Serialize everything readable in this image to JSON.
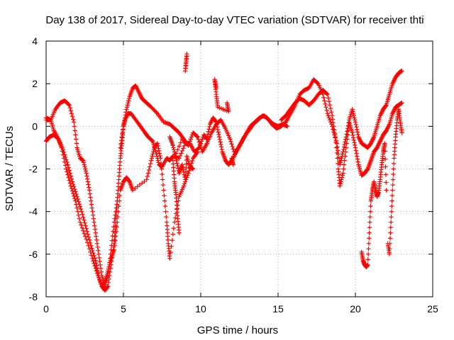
{
  "chart_data": {
    "type": "scatter",
    "title": "Day 138 of 2017, Sidereal Day-to-day VTEC variation (SDTVAR) for receiver thti",
    "xlabel": "GPS time / hours",
    "ylabel": "SDTVAR / TECUs",
    "xlim": [
      0,
      25
    ],
    "ylim": [
      -8,
      4
    ],
    "x_ticks": [
      0,
      5,
      10,
      15,
      20,
      25
    ],
    "y_ticks": [
      -8,
      -6,
      -4,
      -2,
      0,
      2,
      4
    ],
    "grid": true,
    "marker": "+",
    "color": "#ff0000",
    "series": [
      {
        "points": [
          [
            0.0,
            0.3
          ],
          [
            0.3,
            0.3
          ],
          [
            0.5,
            -0.2
          ],
          [
            0.8,
            -0.6
          ],
          [
            1.0,
            -1.0
          ],
          [
            1.3,
            -2.0
          ],
          [
            1.6,
            -2.8
          ],
          [
            1.9,
            -3.5
          ],
          [
            2.2,
            -4.5
          ],
          [
            2.6,
            -5.3
          ],
          [
            3.0,
            -6.2
          ],
          [
            3.3,
            -6.9
          ],
          [
            3.6,
            -7.5
          ],
          [
            3.8,
            -7.7
          ],
          [
            4.0,
            -7.5
          ],
          [
            4.2,
            -6.5
          ],
          [
            4.4,
            -5.5
          ],
          [
            4.5,
            -4.5
          ],
          [
            4.6,
            -3.5
          ],
          [
            4.7,
            -2.5
          ],
          [
            4.8,
            -1.5
          ],
          [
            4.9,
            -0.8
          ],
          [
            5.0,
            0.0
          ],
          [
            5.1,
            0.3
          ],
          [
            5.3,
            0.6
          ],
          [
            5.5,
            0.6
          ],
          [
            5.8,
            0.3
          ],
          [
            6.1,
            0.0
          ],
          [
            6.4,
            -0.3
          ],
          [
            6.6,
            -0.5
          ],
          [
            6.9,
            -0.7
          ],
          [
            7.1,
            -1.2
          ],
          [
            7.3,
            -1.8
          ],
          [
            7.5,
            -1.9
          ],
          [
            7.8,
            -1.5
          ],
          [
            8.0,
            -1.6
          ],
          [
            8.2,
            -1.4
          ],
          [
            8.6,
            -1.5
          ],
          [
            9.0,
            -0.8
          ],
          [
            9.3,
            -0.8
          ],
          [
            9.6,
            -1.2
          ],
          [
            9.9,
            -1.0
          ],
          [
            10.2,
            -0.4
          ],
          [
            10.4,
            -0.6
          ],
          [
            10.6,
            0.1
          ],
          [
            10.8,
            0.4
          ],
          [
            11.0,
            0.2
          ],
          [
            11.2,
            -0.5
          ],
          [
            11.4,
            -1.2
          ],
          [
            11.6,
            -1.6
          ],
          [
            11.8,
            -1.8
          ],
          [
            12.0,
            -1.6
          ],
          [
            12.3,
            -1.2
          ],
          [
            12.6,
            -0.8
          ],
          [
            12.9,
            -0.4
          ],
          [
            13.2,
            0.0
          ],
          [
            13.5,
            0.2
          ],
          [
            13.8,
            0.4
          ],
          [
            14.1,
            0.5
          ],
          [
            14.4,
            0.3
          ],
          [
            14.7,
            0.1
          ],
          [
            15.0,
            0.0
          ],
          [
            15.3,
            0.1
          ],
          [
            15.6,
            0.0
          ]
        ]
      },
      {
        "points": [
          [
            0.0,
            -0.7
          ],
          [
            0.2,
            -0.5
          ],
          [
            0.5,
            -0.4
          ],
          [
            0.8,
            -0.6
          ],
          [
            1.1,
            -1.1
          ],
          [
            1.4,
            -1.8
          ],
          [
            1.7,
            -2.6
          ],
          [
            2.0,
            -3.3
          ],
          [
            2.3,
            -4.0
          ],
          [
            2.6,
            -4.8
          ],
          [
            2.9,
            -5.6
          ],
          [
            3.2,
            -6.3
          ],
          [
            3.4,
            -7.0
          ],
          [
            3.6,
            -7.5
          ],
          [
            3.8,
            -7.3
          ],
          [
            4.0,
            -6.8
          ],
          [
            4.2,
            -6.2
          ],
          [
            4.4,
            -5.8
          ],
          [
            4.6,
            -4.5
          ],
          [
            4.8,
            -3.0
          ],
          [
            5.0,
            -2.6
          ],
          [
            5.2,
            -2.4
          ],
          [
            5.4,
            -2.6
          ],
          [
            5.6,
            -3.0
          ],
          [
            6.5,
            -2.5
          ],
          [
            6.8,
            -1.6
          ],
          [
            7.0,
            -1.0
          ],
          [
            7.2,
            -0.8
          ],
          [
            7.4,
            -1.5
          ],
          [
            7.6,
            -3.0
          ],
          [
            7.8,
            -4.5
          ],
          [
            7.9,
            -5.5
          ],
          [
            8.0,
            -6.2
          ],
          [
            8.3,
            -4.5
          ],
          [
            8.6,
            -3.3
          ],
          [
            8.9,
            -2.8
          ],
          [
            9.2,
            -2.2
          ],
          [
            9.5,
            -1.5
          ],
          [
            9.8,
            -1.2
          ]
        ]
      },
      {
        "points": [
          [
            0.0,
            0.4
          ],
          [
            0.3,
            0.3
          ],
          [
            0.6,
            0.8
          ],
          [
            0.9,
            1.1
          ],
          [
            1.2,
            1.2
          ],
          [
            1.5,
            1.0
          ],
          [
            1.8,
            0.2
          ],
          [
            2.0,
            -1.0
          ],
          [
            2.2,
            -1.5
          ],
          [
            2.4,
            -1.6
          ],
          [
            2.6,
            -2.2
          ],
          [
            2.8,
            -3.0
          ],
          [
            3.0,
            -4.0
          ],
          [
            3.2,
            -5.0
          ],
          [
            3.4,
            -6.0
          ],
          [
            3.6,
            -7.0
          ],
          [
            3.8,
            -7.5
          ],
          [
            4.0,
            -7.0
          ],
          [
            4.2,
            -5.8
          ],
          [
            4.4,
            -4.5
          ],
          [
            4.6,
            -3.5
          ],
          [
            4.8,
            -1.0
          ],
          [
            5.0,
            0.0
          ],
          [
            5.2,
            0.8
          ],
          [
            5.4,
            1.4
          ],
          [
            5.6,
            1.8
          ],
          [
            5.8,
            1.9
          ],
          [
            6.0,
            1.6
          ],
          [
            6.2,
            1.3
          ],
          [
            6.5,
            1.1
          ],
          [
            6.8,
            0.9
          ],
          [
            7.2,
            0.6
          ],
          [
            7.6,
            0.2
          ],
          [
            8.0,
            0.1
          ],
          [
            8.3,
            -0.1
          ],
          [
            8.6,
            -0.3
          ],
          [
            8.9,
            -0.6
          ],
          [
            9.2,
            -0.9
          ],
          [
            9.5,
            -0.3
          ],
          [
            9.8,
            -0.5
          ],
          [
            10.1,
            -1.2
          ],
          [
            10.4,
            -0.8
          ],
          [
            10.7,
            -0.3
          ],
          [
            11.0,
            0.1
          ],
          [
            11.3,
            0.3
          ],
          [
            11.6,
            -0.1
          ],
          [
            11.9,
            -0.6
          ],
          [
            12.2,
            -1.3
          ],
          [
            12.5,
            -0.9
          ],
          [
            12.8,
            -0.5
          ],
          [
            13.1,
            -0.2
          ],
          [
            13.4,
            0.1
          ],
          [
            13.7,
            0.3
          ],
          [
            14.0,
            0.5
          ],
          [
            14.3,
            0.4
          ],
          [
            14.6,
            0.1
          ],
          [
            14.9,
            -0.1
          ],
          [
            15.2,
            0.0
          ],
          [
            15.5,
            0.2
          ],
          [
            15.8,
            0.6
          ],
          [
            16.1,
            1.0
          ],
          [
            16.4,
            1.5
          ],
          [
            16.7,
            1.7
          ],
          [
            17.0,
            1.8
          ],
          [
            17.3,
            2.2
          ],
          [
            17.6,
            2.0
          ],
          [
            17.9,
            1.5
          ],
          [
            18.2,
            0.6
          ],
          [
            18.5,
            0.0
          ],
          [
            18.8,
            -0.8
          ],
          [
            19.0,
            -1.8
          ],
          [
            19.2,
            -1.2
          ],
          [
            19.4,
            -0.5
          ],
          [
            19.6,
            0.3
          ],
          [
            19.8,
            0.8
          ],
          [
            20.0,
            0.2
          ],
          [
            20.2,
            -0.5
          ],
          [
            20.4,
            -0.8
          ],
          [
            20.6,
            -0.9
          ],
          [
            20.8,
            -1.0
          ],
          [
            21.0,
            -0.8
          ],
          [
            21.2,
            -0.5
          ],
          [
            21.4,
            0.0
          ],
          [
            21.6,
            0.5
          ],
          [
            21.8,
            0.8
          ],
          [
            22.0,
            1.0
          ],
          [
            22.2,
            1.5
          ],
          [
            22.4,
            2.0
          ],
          [
            22.6,
            2.3
          ],
          [
            22.8,
            2.5
          ],
          [
            23.0,
            2.6
          ]
        ]
      },
      {
        "points": [
          [
            15.2,
            0.3
          ],
          [
            15.5,
            0.5
          ],
          [
            15.8,
            0.8
          ],
          [
            16.1,
            1.1
          ],
          [
            16.4,
            1.3
          ],
          [
            16.7,
            1.2
          ],
          [
            17.0,
            1.0
          ],
          [
            17.3,
            1.2
          ],
          [
            17.6,
            1.5
          ],
          [
            17.9,
            1.7
          ],
          [
            18.2,
            1.5
          ],
          [
            18.5,
            0.5
          ],
          [
            18.7,
            -0.5
          ],
          [
            18.9,
            -2.0
          ],
          [
            19.0,
            -2.8
          ],
          [
            19.2,
            -2.2
          ],
          [
            19.4,
            -1.0
          ],
          [
            19.6,
            0.2
          ],
          [
            19.8,
            -0.3
          ],
          [
            20.0,
            -1.0
          ],
          [
            20.2,
            -1.8
          ],
          [
            20.4,
            -2.3
          ],
          [
            20.6,
            -2.2
          ],
          [
            20.8,
            -2.0
          ],
          [
            21.0,
            -1.6
          ],
          [
            21.2,
            -1.2
          ],
          [
            21.4,
            -1.0
          ],
          [
            21.6,
            -0.7
          ],
          [
            21.8,
            -0.4
          ],
          [
            22.0,
            -0.2
          ],
          [
            22.2,
            0.1
          ],
          [
            22.4,
            0.6
          ],
          [
            22.6,
            0.9
          ],
          [
            22.8,
            1.0
          ],
          [
            23.0,
            1.1
          ]
        ]
      },
      {
        "points": [
          [
            20.4,
            -5.9
          ],
          [
            20.5,
            -6.3
          ],
          [
            20.6,
            -6.5
          ],
          [
            20.7,
            -6.6
          ],
          [
            20.8,
            -6.5
          ],
          [
            20.9,
            -5.0
          ],
          [
            21.0,
            -3.5
          ],
          [
            21.1,
            -3.0
          ],
          [
            21.2,
            -2.6
          ],
          [
            21.3,
            -3.0
          ],
          [
            21.4,
            -3.3
          ],
          [
            21.5,
            -3.1
          ],
          [
            21.6,
            -2.5
          ],
          [
            21.7,
            -1.8
          ],
          [
            21.8,
            -1.2
          ],
          [
            21.9,
            -0.8
          ],
          [
            22.0,
            -3.0
          ],
          [
            22.1,
            -5.5
          ],
          [
            22.2,
            -6.0
          ],
          [
            22.3,
            -4.5
          ],
          [
            22.4,
            -3.0
          ],
          [
            22.5,
            -1.5
          ],
          [
            22.6,
            -0.5
          ],
          [
            22.7,
            0.3
          ],
          [
            22.8,
            0.8
          ],
          [
            22.9,
            0.2
          ],
          [
            23.0,
            -0.3
          ]
        ]
      },
      {
        "points": [
          [
            8.0,
            -0.5
          ],
          [
            8.2,
            -0.9
          ],
          [
            8.4,
            -1.5
          ],
          [
            8.6,
            -2.2
          ],
          [
            8.8,
            -1.8
          ],
          [
            9.0,
            -2.5
          ],
          [
            9.1,
            -1.4
          ],
          [
            9.3,
            -1.9
          ],
          [
            9.5,
            -2.0
          ],
          [
            9.1,
            3.3
          ],
          [
            9.0,
            2.6
          ],
          [
            9.1,
            3.4
          ],
          [
            8.6,
            -5.0
          ],
          [
            8.5,
            -4.2
          ],
          [
            8.4,
            -3.2
          ],
          [
            8.3,
            -2.6
          ],
          [
            8.2,
            -1.6
          ],
          [
            8.8,
            -0.6
          ],
          [
            9.2,
            -0.9
          ],
          [
            11.0,
            1.8
          ],
          [
            10.9,
            2.2
          ],
          [
            11.0,
            1.5
          ],
          [
            11.1,
            0.9
          ],
          [
            11.8,
            0.7
          ],
          [
            11.7,
            1.1
          ],
          [
            12.1,
            -1.8
          ],
          [
            12.0,
            -1.5
          ]
        ]
      }
    ]
  }
}
